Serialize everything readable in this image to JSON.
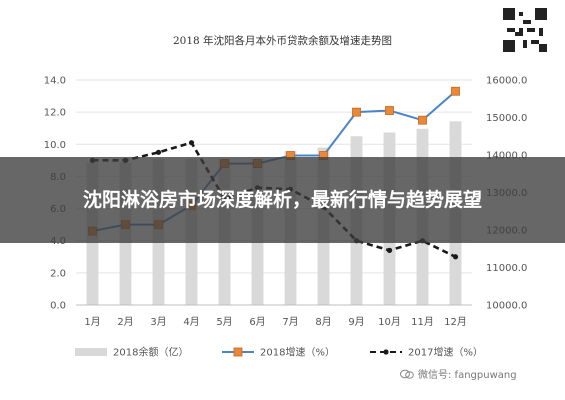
{
  "title": "2018 年沈阳各月本外币贷款余额及增速走势图",
  "banner": {
    "text": "沈阳淋浴房市场深度解析，最新行情与趋势展望"
  },
  "watermark": {
    "text": "微信号: fangpuwang"
  },
  "chart_data": {
    "type": "bar",
    "categories": [
      "1月",
      "2月",
      "3月",
      "4月",
      "5月",
      "6月",
      "7月",
      "8月",
      "9月",
      "10月",
      "11月",
      "12月"
    ],
    "y_left": {
      "ticks": [
        "0.0",
        "2.0",
        "4.0",
        "6.0",
        "8.0",
        "10.0",
        "12.0",
        "14.0"
      ],
      "ylim": [
        0,
        14
      ]
    },
    "y_right": {
      "ticks": [
        "10000.0",
        "11000.0",
        "12000.0",
        "13000.0",
        "14000.0",
        "15000.0",
        "16000.0"
      ],
      "ylim": [
        10000,
        16000
      ]
    },
    "series": [
      {
        "name": "2018余额（亿）",
        "kind": "bar",
        "axis": "right",
        "color": "#d9d9d9",
        "values": [
          13800,
          13800,
          13900,
          13900,
          13900,
          13900,
          14100,
          14200,
          14500,
          14600,
          14700,
          14900
        ]
      },
      {
        "name": "2018增速（%）",
        "kind": "line",
        "axis": "left",
        "color": "#4a86c5",
        "values": [
          4.6,
          5.0,
          5.0,
          6.2,
          8.8,
          8.8,
          9.3,
          9.3,
          12.0,
          12.1,
          11.5,
          13.3
        ]
      },
      {
        "name": "2017增速（%）",
        "kind": "dashed-line",
        "axis": "left",
        "color": "#1a1a1a",
        "values": [
          9.0,
          9.0,
          9.5,
          10.1,
          6.6,
          7.3,
          7.2,
          6.1,
          4.0,
          3.4,
          4.0,
          3.0
        ]
      }
    ],
    "grid": true,
    "legend_position": "bottom"
  }
}
